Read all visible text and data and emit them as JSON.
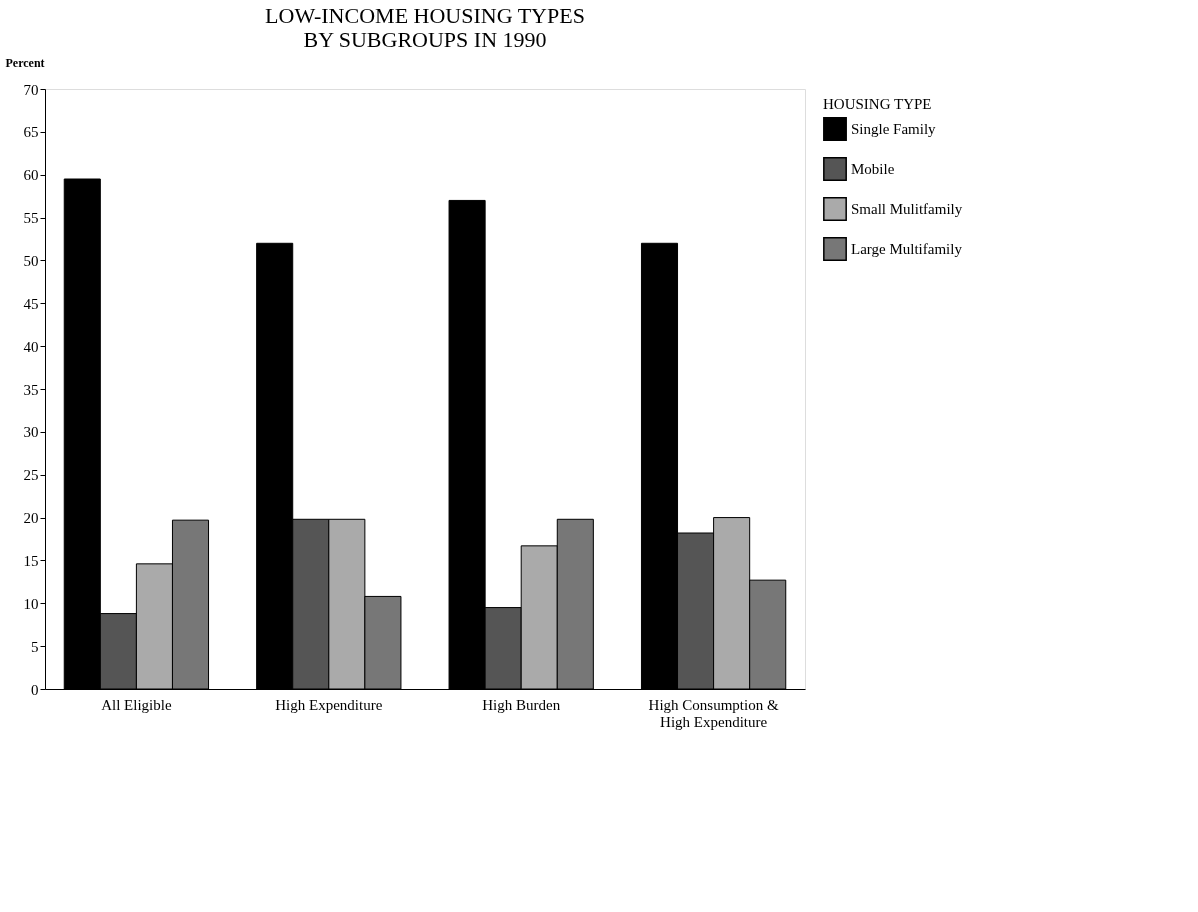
{
  "chart_data": {
    "type": "bar",
    "title": [
      "LOW-INCOME HOUSING TYPES",
      "BY SUBGROUPS IN 1990"
    ],
    "ylabel": "Percent",
    "legend_title": "HOUSING TYPE",
    "categories": [
      "All Eligible",
      "High Expenditure",
      "High Burden",
      "High Consumption &\nHigh Expenditure"
    ],
    "series": [
      {
        "name": "Single Family",
        "color": "#000000",
        "values": [
          59.5,
          52,
          57,
          52
        ]
      },
      {
        "name": "Mobile",
        "color": "#555555",
        "values": [
          8.8,
          19.8,
          9.5,
          18.2
        ]
      },
      {
        "name": "Small Mulitfamily",
        "color": "#aaaaaa",
        "values": [
          14.6,
          19.8,
          16.7,
          20
        ]
      },
      {
        "name": "Large Multifamily",
        "color": "#777777",
        "values": [
          19.7,
          10.8,
          19.8,
          12.7
        ]
      }
    ],
    "ylim": [
      0,
      70
    ],
    "yticks": [
      0,
      5,
      10,
      15,
      20,
      25,
      30,
      35,
      40,
      45,
      50,
      55,
      60,
      65,
      70
    ],
    "grid": false,
    "legend": "top right"
  }
}
